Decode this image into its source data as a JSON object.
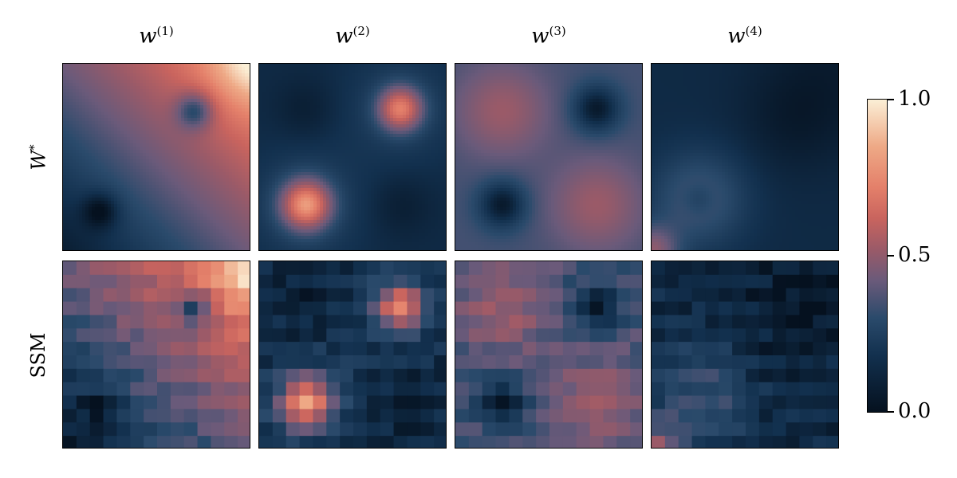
{
  "column_titles": [
    {
      "base": "w",
      "sup": "(1)"
    },
    {
      "base": "w",
      "sup": "(2)"
    },
    {
      "base": "w",
      "sup": "(3)"
    },
    {
      "base": "w",
      "sup": "(4)"
    }
  ],
  "row_labels": {
    "top": {
      "base": "W",
      "sup": "*"
    },
    "bottom": "SSM"
  },
  "colorbar": {
    "ticks": [
      "1.0",
      "0.5",
      "0.0"
    ],
    "range": [
      0.0,
      1.0
    ],
    "colors": [
      "#05111f",
      "#12304e",
      "#2a4a6b",
      "#6a5a7a",
      "#9a5a68",
      "#c9645e",
      "#e4806a",
      "#eea986",
      "#fbefd6"
    ]
  },
  "chart_data": {
    "type": "heatmap",
    "colormap": "dark-blue to salmon to cream",
    "value_range": [
      0.0,
      1.0
    ],
    "grid_cells": 14,
    "rows": [
      "W*",
      "SSM"
    ],
    "columns": [
      "w(1)",
      "w(2)",
      "w(3)",
      "w(4)"
    ],
    "panels": [
      {
        "row": "W*",
        "column": "w(1)",
        "description_values": "gradient 0.05 (bottom-left) to 0.95 (top-right); dips near (0.7,0.75)=0.25 and (0.2,0.2)=0.15"
      },
      {
        "row": "W*",
        "column": "w(2)",
        "description_values": "peaks 0.70 at (0.25,0.25) and 0.65 at (0.75,0.75); low elsewhere"
      },
      {
        "row": "W*",
        "column": "w(3)",
        "description_values": "0.5 at (0.25,0.75) and (0.75,0.25); lows near 0.05 at (0.75,0.75) and (0.25,0.25)"
      },
      {
        "row": "W*",
        "column": "w(4)",
        "description_values": "mostly 0.1; bump 0.3 at (0.2,0.3), ring near bottom-left corner 0.55"
      },
      {
        "row": "SSM",
        "column": "w(1)",
        "description_values": "pixelated version of W*"
      },
      {
        "row": "SSM",
        "column": "w(2)",
        "description_values": "pixelated version of W*"
      },
      {
        "row": "SSM",
        "column": "w(3)",
        "description_values": "pixelated version of W*"
      },
      {
        "row": "SSM",
        "column": "w(4)",
        "description_values": "pixelated version of W*"
      }
    ]
  }
}
